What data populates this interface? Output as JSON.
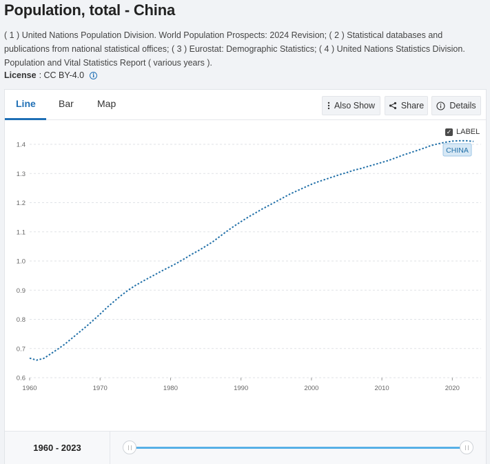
{
  "page": {
    "title": "Population, total - China",
    "sources": "( 1 ) United Nations Population Division. World Population Prospects: 2024 Revision; ( 2 ) Statistical databases and publications from national statistical offices; ( 3 ) Eurostat: Demographic Statistics; ( 4 ) United Nations Statistics Division. Population and Vital Statistics Report ( various years ).",
    "license_label": "License",
    "license_value": ": CC BY-4.0",
    "info_icon": "info-icon"
  },
  "tabs": [
    {
      "label": "Line",
      "active": true
    },
    {
      "label": "Bar",
      "active": false
    },
    {
      "label": "Map",
      "active": false
    }
  ],
  "toolbar": {
    "also_show": "Also Show",
    "share": "Share",
    "details": "Details"
  },
  "label_toggle": {
    "text": "LABEL",
    "checked": true
  },
  "range": {
    "text": "1960 - 2023",
    "start": 1960,
    "end": 2023
  },
  "colors": {
    "accent": "#1f6fb5",
    "line": "#2170a8",
    "slider": "#57b0e6"
  },
  "chart_data": {
    "type": "line",
    "title": "",
    "xlabel": "",
    "ylabel": "",
    "xlim": [
      1960,
      2023
    ],
    "ylim": [
      0.6,
      1.4
    ],
    "xticks": [
      "1960",
      "1970",
      "1980",
      "1990",
      "2000",
      "2010",
      "2020"
    ],
    "yticks": [
      "0.6",
      "0.7",
      "0.8",
      "0.9",
      "1.0",
      "1.1",
      "1.2",
      "1.3",
      "1.4"
    ],
    "grid": true,
    "series": [
      {
        "name": "CHINA",
        "x": [
          1960,
          1961,
          1962,
          1963,
          1964,
          1965,
          1966,
          1967,
          1968,
          1969,
          1970,
          1971,
          1972,
          1973,
          1974,
          1975,
          1976,
          1977,
          1978,
          1979,
          1980,
          1981,
          1982,
          1983,
          1984,
          1985,
          1986,
          1987,
          1988,
          1989,
          1990,
          1991,
          1992,
          1993,
          1994,
          1995,
          1996,
          1997,
          1998,
          1999,
          2000,
          2001,
          2002,
          2003,
          2004,
          2005,
          2006,
          2007,
          2008,
          2009,
          2010,
          2011,
          2012,
          2013,
          2014,
          2015,
          2016,
          2017,
          2018,
          2019,
          2020,
          2021,
          2022,
          2023
        ],
        "values": [
          0.667,
          0.66,
          0.666,
          0.682,
          0.698,
          0.715,
          0.735,
          0.755,
          0.775,
          0.796,
          0.818,
          0.841,
          0.862,
          0.882,
          0.9,
          0.916,
          0.93,
          0.943,
          0.956,
          0.969,
          0.981,
          0.994,
          1.008,
          1.023,
          1.036,
          1.051,
          1.066,
          1.084,
          1.102,
          1.119,
          1.135,
          1.15,
          1.164,
          1.178,
          1.191,
          1.204,
          1.217,
          1.23,
          1.241,
          1.252,
          1.263,
          1.272,
          1.28,
          1.288,
          1.296,
          1.303,
          1.311,
          1.317,
          1.324,
          1.331,
          1.338,
          1.345,
          1.354,
          1.363,
          1.371,
          1.379,
          1.387,
          1.396,
          1.402,
          1.407,
          1.411,
          1.412,
          1.412,
          1.41
        ]
      }
    ]
  }
}
